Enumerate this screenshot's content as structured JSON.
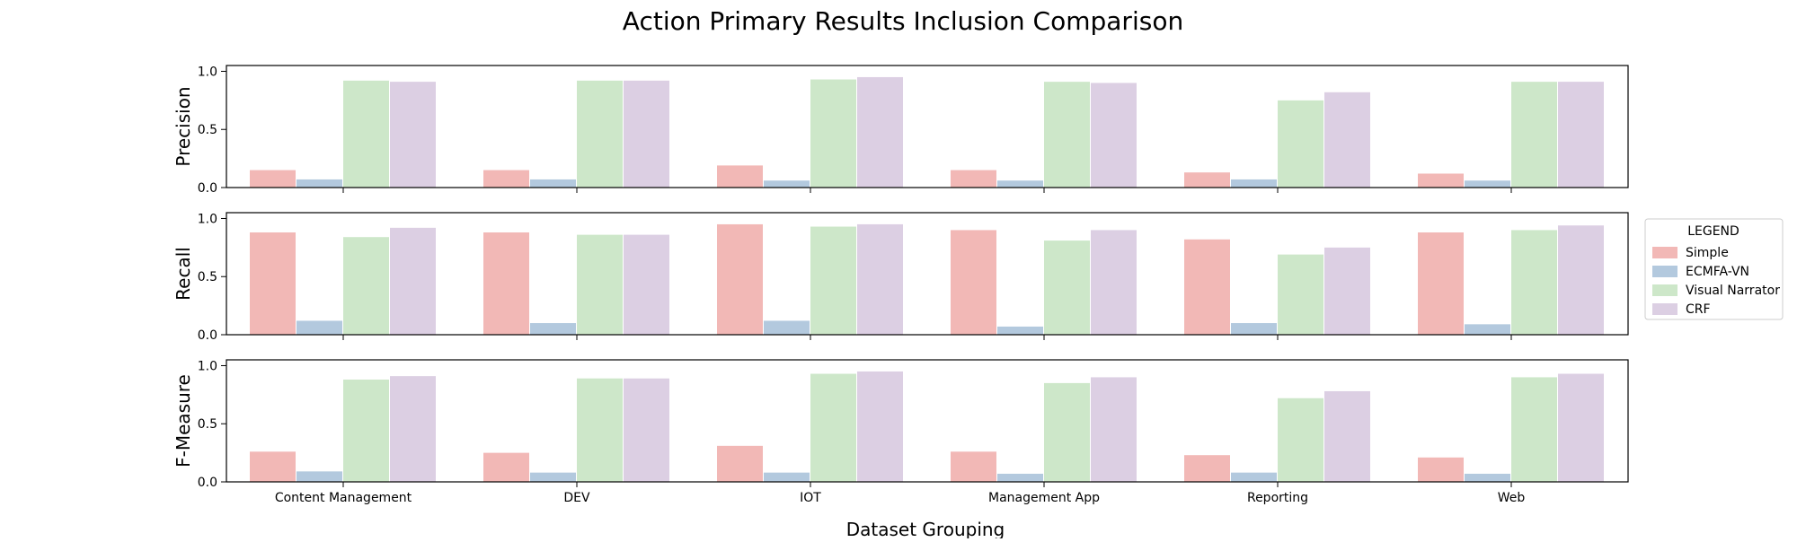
{
  "chart_data": {
    "type": "bar",
    "title": "Action Primary Results Inclusion Comparison",
    "xlabel": "Dataset Grouping",
    "categories": [
      "Content Management",
      "DEV",
      "IOT",
      "Management App",
      "Reporting",
      "Web"
    ],
    "legend": {
      "title": "LEGEND",
      "placement": "center-right outside",
      "entries": [
        "Simple",
        "ECMFA-VN",
        "Visual Narrator",
        "CRF"
      ]
    },
    "series_colors": [
      "#f2b8b6",
      "#b3c9de",
      "#cde7c9",
      "#dccfe3"
    ],
    "subplots": [
      {
        "ylabel": "Precision",
        "ylim": [
          0,
          1.05
        ],
        "yticks": [
          "0.0",
          "0.5",
          "1.0"
        ],
        "series": [
          {
            "name": "Simple",
            "values": [
              0.15,
              0.15,
              0.19,
              0.15,
              0.13,
              0.12
            ]
          },
          {
            "name": "ECMFA-VN",
            "values": [
              0.07,
              0.07,
              0.06,
              0.06,
              0.07,
              0.06
            ]
          },
          {
            "name": "Visual Narrator",
            "values": [
              0.92,
              0.92,
              0.93,
              0.91,
              0.75,
              0.91
            ]
          },
          {
            "name": "CRF",
            "values": [
              0.91,
              0.92,
              0.95,
              0.9,
              0.82,
              0.91
            ]
          }
        ]
      },
      {
        "ylabel": "Recall",
        "ylim": [
          0,
          1.05
        ],
        "yticks": [
          "0.0",
          "0.5",
          "1.0"
        ],
        "series": [
          {
            "name": "Simple",
            "values": [
              0.88,
              0.88,
              0.95,
              0.9,
              0.82,
              0.88
            ]
          },
          {
            "name": "ECMFA-VN",
            "values": [
              0.12,
              0.1,
              0.12,
              0.07,
              0.1,
              0.09
            ]
          },
          {
            "name": "Visual Narrator",
            "values": [
              0.84,
              0.86,
              0.93,
              0.81,
              0.69,
              0.9
            ]
          },
          {
            "name": "CRF",
            "values": [
              0.92,
              0.86,
              0.95,
              0.9,
              0.75,
              0.94
            ]
          }
        ]
      },
      {
        "ylabel": "F-Measure",
        "ylim": [
          0,
          1.05
        ],
        "yticks": [
          "0.0",
          "0.5",
          "1.0"
        ],
        "series": [
          {
            "name": "Simple",
            "values": [
              0.26,
              0.25,
              0.31,
              0.26,
              0.23,
              0.21
            ]
          },
          {
            "name": "ECMFA-VN",
            "values": [
              0.09,
              0.08,
              0.08,
              0.07,
              0.08,
              0.07
            ]
          },
          {
            "name": "Visual Narrator",
            "values": [
              0.88,
              0.89,
              0.93,
              0.85,
              0.72,
              0.9
            ]
          },
          {
            "name": "CRF",
            "values": [
              0.91,
              0.89,
              0.95,
              0.9,
              0.78,
              0.93
            ]
          }
        ]
      }
    ]
  }
}
